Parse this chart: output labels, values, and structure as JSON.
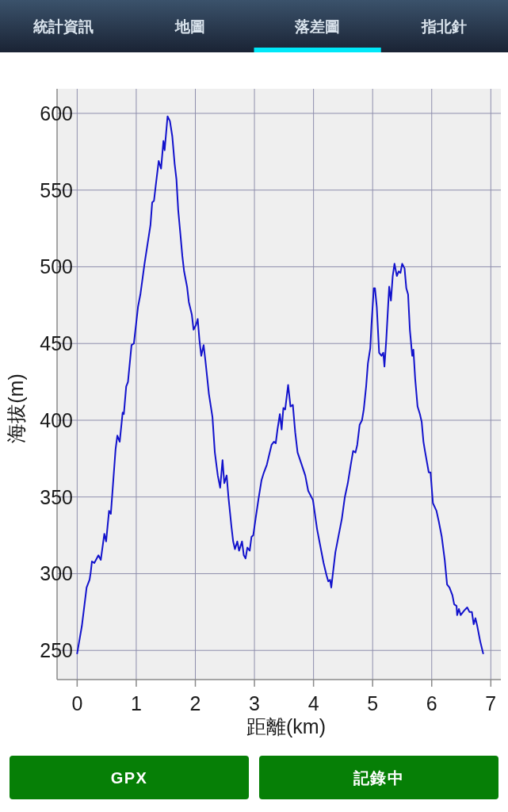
{
  "chart_data": {
    "type": "line",
    "xlabel": "距離(km)",
    "ylabel": "海拔(m)",
    "annotations": [
      "統計資訊",
      "地圖",
      "落差圖",
      "指北針",
      "GPX",
      "記錄中"
    ],
    "x": [
      0,
      0.08,
      0.16,
      0.21,
      0.23,
      0.25,
      0.29,
      0.36,
      0.4,
      0.46,
      0.49,
      0.54,
      0.57,
      0.65,
      0.68,
      0.72,
      0.77,
      0.79,
      0.83,
      0.86,
      0.92,
      0.96,
      1.03,
      1.07,
      1.14,
      1.24,
      1.27,
      1.3,
      1.33,
      1.38,
      1.42,
      1.46,
      1.48,
      1.53,
      1.57,
      1.61,
      1.65,
      1.68,
      1.71,
      1.75,
      1.78,
      1.81,
      1.86,
      1.89,
      1.94,
      1.97,
      2.01,
      2.04,
      2.07,
      2.1,
      2.14,
      2.17,
      2.23,
      2.29,
      2.33,
      2.38,
      2.42,
      2.46,
      2.49,
      2.53,
      2.56,
      2.61,
      2.64,
      2.67,
      2.71,
      2.74,
      2.79,
      2.82,
      2.85,
      2.88,
      2.92,
      2.95,
      2.98,
      3.02,
      3.07,
      3.12,
      3.16,
      3.21,
      3.24,
      3.29,
      3.33,
      3.36,
      3.39,
      3.43,
      3.46,
      3.49,
      3.52,
      3.57,
      3.61,
      3.65,
      3.69,
      3.73,
      3.8,
      3.86,
      3.91,
      3.99,
      4.06,
      4.11,
      4.17,
      4.22,
      4.25,
      4.28,
      4.3,
      4.33,
      4.37,
      4.43,
      4.48,
      4.53,
      4.58,
      4.63,
      4.67,
      4.71,
      4.74,
      4.78,
      4.82,
      4.85,
      4.89,
      4.92,
      4.96,
      4.98,
      5.02,
      5.04,
      5.07,
      5.11,
      5.15,
      5.18,
      5.2,
      5.23,
      5.28,
      5.31,
      5.34,
      5.37,
      5.41,
      5.44,
      5.47,
      5.5,
      5.54,
      5.57,
      5.6,
      5.63,
      5.67,
      5.69,
      5.72,
      5.76,
      5.8,
      5.83,
      5.86,
      5.89,
      5.95,
      5.98,
      6.02,
      6.08,
      6.12,
      6.17,
      6.22,
      6.26,
      6.3,
      6.35,
      6.38,
      6.42,
      6.43,
      6.46,
      6.49,
      6.55,
      6.6,
      6.64,
      6.68,
      6.71,
      6.74,
      6.77,
      6.82,
      6.87
    ],
    "series": [
      {
        "color": "#1212cc",
        "values": [
          248,
          266,
          291,
          296,
          301,
          308,
          307,
          312,
          309,
          326,
          321,
          341,
          339,
          381,
          390,
          386,
          405,
          404,
          422,
          425,
          449,
          450,
          474,
          482,
          502,
          527,
          542,
          543,
          553,
          569,
          564,
          582,
          576,
          598,
          595,
          585,
          567,
          557,
          537,
          520,
          507,
          497,
          487,
          477,
          469,
          459,
          462,
          466,
          452,
          442,
          449,
          439,
          417,
          402,
          379,
          364,
          356,
          374,
          359,
          364,
          350,
          331,
          321,
          316,
          321,
          315,
          321,
          312,
          310,
          317,
          315,
          324,
          325,
          336,
          349,
          361,
          366,
          371,
          376,
          384,
          386,
          385,
          394,
          404,
          394,
          408,
          407,
          423,
          409,
          410,
          392,
          379,
          371,
          364,
          354,
          348,
          329,
          319,
          307,
          299,
          295,
          296,
          291,
          301,
          314,
          326,
          336,
          350,
          359,
          371,
          380,
          379,
          384,
          397,
          400,
          407,
          422,
          437,
          447,
          462,
          486,
          486,
          474,
          444,
          442,
          444,
          435,
          452,
          487,
          478,
          494,
          502,
          494,
          497,
          496,
          502,
          499,
          486,
          482,
          459,
          442,
          446,
          427,
          409,
          404,
          399,
          386,
          379,
          366,
          366,
          346,
          341,
          334,
          324,
          309,
          293,
          291,
          286,
          280,
          279,
          273,
          277,
          273,
          276,
          278,
          275,
          275,
          267,
          271,
          266,
          256,
          248
        ]
      }
    ],
    "xlim": [
      -0.34,
      7.17
    ],
    "ylim": [
      231,
      616
    ],
    "xticks": [
      0,
      1,
      2,
      3,
      4,
      5,
      6,
      7
    ],
    "yticks": [
      250,
      300,
      350,
      400,
      450,
      500,
      550,
      600
    ],
    "grid": true
  }
}
